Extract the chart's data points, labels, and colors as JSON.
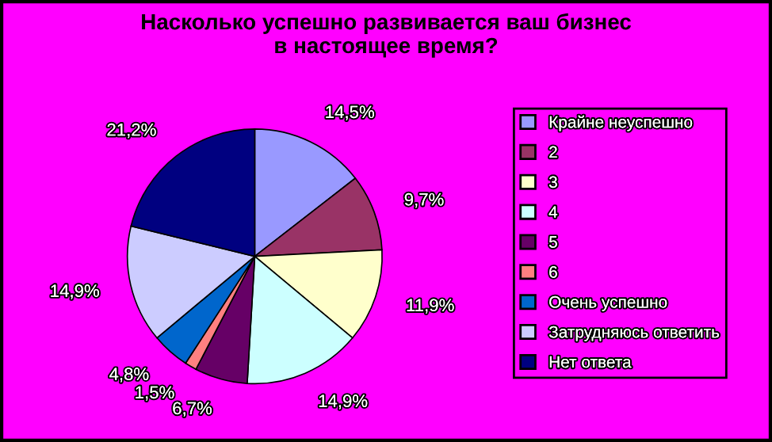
{
  "chart_data": {
    "type": "pie",
    "title": "Насколько успешно развивается ваш бизнес\nв настоящее время?",
    "categories": [
      "Крайне неуспешно",
      "2",
      "3",
      "4",
      "5",
      "6",
      "Очень успешно",
      "Затрудняюсь ответить",
      "Нет ответа"
    ],
    "values": [
      14.5,
      9.7,
      11.9,
      14.9,
      6.7,
      1.5,
      4.8,
      14.9,
      21.2
    ],
    "value_labels": [
      "14,5%",
      "9,7%",
      "11,9%",
      "14,9%",
      "6,7%",
      "1,5%",
      "4,8%",
      "14,9%",
      "21,2%"
    ],
    "colors": [
      "#9999ff",
      "#993366",
      "#ffffcc",
      "#ccffff",
      "#660066",
      "#ff8080",
      "#0066cc",
      "#ccccff",
      "#000080"
    ],
    "legend": "right"
  }
}
